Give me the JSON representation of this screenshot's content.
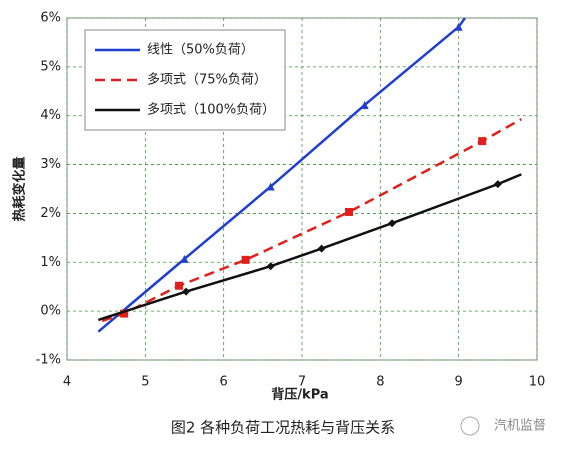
{
  "chart_data": {
    "type": "line",
    "xlabel": "背压/kPa",
    "ylabel": "热耗变化量",
    "xlim": [
      4,
      10
    ],
    "xticks": [
      4,
      5,
      6,
      7,
      8,
      9,
      10
    ],
    "ylim": [
      -1,
      6
    ],
    "yticks": [
      {
        "value": -1,
        "label": "-1%"
      },
      {
        "value": 0,
        "label": "0%"
      },
      {
        "value": 1,
        "label": "1%"
      },
      {
        "value": 2,
        "label": "2%"
      },
      {
        "value": 3,
        "label": "3%"
      },
      {
        "value": 4,
        "label": "4%"
      },
      {
        "value": 5,
        "label": "5%"
      },
      {
        "value": 6,
        "label": "6%"
      }
    ],
    "grid": true,
    "legend": "upper left",
    "series": [
      {
        "name": "线性（50%负荷）",
        "color": "#1f3fd0",
        "linestyle": "solid",
        "marker": "triangle",
        "x": [
          4.4,
          5.5,
          6.6,
          7.8,
          9.0,
          9.08
        ],
        "values": [
          -0.42,
          1.07,
          2.55,
          4.22,
          5.82,
          6.0
        ]
      },
      {
        "name": "多项式（75%负荷）",
        "color": "#e0201c",
        "linestyle": "dashed",
        "marker": "square",
        "x": [
          4.45,
          4.73,
          5.43,
          6.28,
          7.6,
          9.3,
          9.8
        ],
        "values": [
          -0.2,
          -0.05,
          0.52,
          1.05,
          2.03,
          3.48,
          3.93
        ]
      },
      {
        "name": "多项式（100%负荷）",
        "color": "#111111",
        "linestyle": "solid",
        "marker": "diamond",
        "x": [
          4.4,
          5.52,
          6.6,
          7.25,
          8.15,
          9.5,
          9.8
        ],
        "values": [
          -0.18,
          0.4,
          0.92,
          1.28,
          1.8,
          2.6,
          2.8
        ]
      }
    ]
  },
  "caption": "图2 各种负荷工况热耗与背压关系",
  "watermark": "汽机监督"
}
